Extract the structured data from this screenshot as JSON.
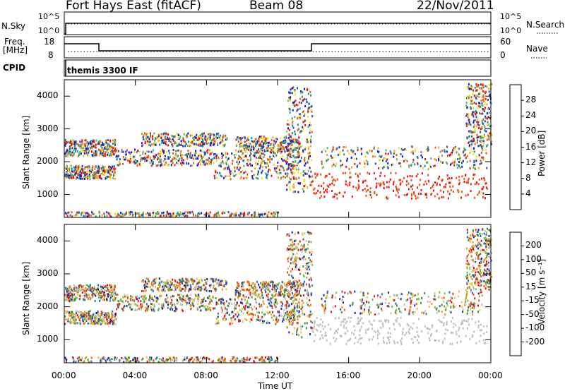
{
  "header": {
    "station": "Fort Hays East (fitACF)",
    "beam": "Beam 08",
    "date": "22/Nov/2011"
  },
  "status_panels": {
    "nsky_label": "N.Sky",
    "nsky_ticks": [
      "10^5",
      "10^0"
    ],
    "nsearch_label": "N.Search",
    "freq_label_line1": "Freq.",
    "freq_label_line2": "[MHz]",
    "freq_ticks": [
      "18",
      "8"
    ],
    "nave_label": "Nave",
    "nave_ticks": [
      "60",
      "0"
    ],
    "cpid_label": "CPID",
    "cpid_value": "themis 3300 IF"
  },
  "chart_data": [
    {
      "type": "heatmap",
      "name": "power-panel",
      "xlabel": "Time UT",
      "ylabel": "Slant Range [km]",
      "x_ticks": [
        "00:00",
        "04:00",
        "08:00",
        "12:00",
        "16:00",
        "20:00",
        "00:00"
      ],
      "y_ticks": [
        1000,
        2000,
        3000,
        4000
      ],
      "ylim": [
        300,
        4500
      ],
      "colorbar_label": "Power [dB]",
      "colorbar_ticks": [
        "4",
        "8",
        "12",
        "16",
        "20",
        "24",
        "28"
      ],
      "colorbar_colors": [
        "#0a1adc",
        "#1e50b4",
        "#2a8a7a",
        "#58b060",
        "#e8e020",
        "#f0a020",
        "#f05010",
        "#e81010"
      ]
    },
    {
      "type": "heatmap",
      "name": "velocity-panel",
      "xlabel": "Time UT",
      "ylabel": "Slant Range [km]",
      "x_ticks": [
        "00:00",
        "04:00",
        "08:00",
        "12:00",
        "16:00",
        "20:00",
        "00:00"
      ],
      "y_ticks": [
        1000,
        2000,
        3000,
        4000
      ],
      "ylim": [
        300,
        4500
      ],
      "colorbar_label": "Velocity [m s⁻¹]",
      "colorbar_ticks": [
        "200",
        "100",
        "50",
        "15",
        "-15",
        "-50",
        "-100",
        "-200"
      ],
      "colorbar_colors": [
        "#1a2aa8",
        "#2a6ab0",
        "#3a9040",
        "#70c040",
        "#c0c0b8",
        "#e8c040",
        "#f09020",
        "#f05010",
        "#e81010"
      ]
    }
  ]
}
